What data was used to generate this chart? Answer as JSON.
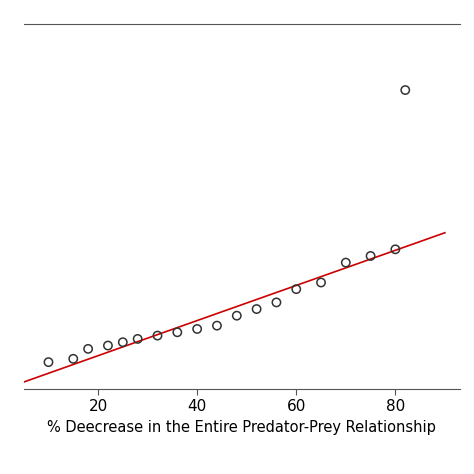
{
  "scatter_x": [
    10,
    15,
    18,
    22,
    25,
    28,
    32,
    36,
    40,
    44,
    48,
    52,
    56,
    60,
    65,
    70,
    75,
    80,
    82
  ],
  "scatter_y": [
    0.08,
    0.09,
    0.12,
    0.13,
    0.14,
    0.15,
    0.16,
    0.17,
    0.18,
    0.19,
    0.22,
    0.24,
    0.26,
    0.3,
    0.32,
    0.38,
    0.4,
    0.42,
    0.9
  ],
  "line_x": [
    5,
    90
  ],
  "line_y": [
    0.02,
    0.47
  ],
  "line_color": "#cc0000",
  "marker_color": "none",
  "marker_edge_color": "#333333",
  "marker_size": 6,
  "marker_linewidth": 1.1,
  "xlabel": "% Deecrease in the Entire Predator-Prey Relationship",
  "xlabel_fontsize": 10.5,
  "xticks": [
    20,
    40,
    60,
    80
  ],
  "xlim": [
    5,
    93
  ],
  "ylim": [
    0.0,
    1.1
  ],
  "line_width": 1.2,
  "bg_color": "#ffffff",
  "spine_color": "#555555"
}
